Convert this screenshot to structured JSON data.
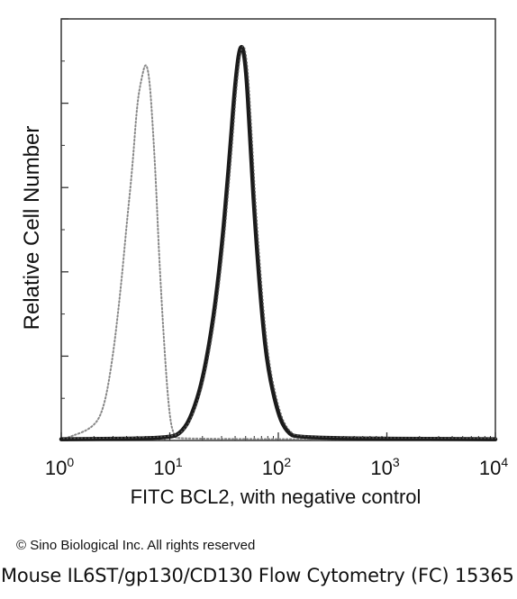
{
  "chart_data": {
    "type": "histogram",
    "xlabel": "FITC BCL2, with negative control",
    "ylabel": "Relative Cell Number",
    "x_scale": "log",
    "xlim": [
      1,
      10000
    ],
    "ylim": [
      0,
      100
    ],
    "x_ticks": [
      {
        "value": 1,
        "base": "10",
        "exp": "0"
      },
      {
        "value": 10,
        "base": "10",
        "exp": "1"
      },
      {
        "value": 100,
        "base": "10",
        "exp": "2"
      },
      {
        "value": 1000,
        "base": "10",
        "exp": "3"
      },
      {
        "value": 10000,
        "base": "10",
        "exp": "4"
      }
    ],
    "series": [
      {
        "style": "dotted",
        "color": "#888888",
        "x": [
          1.1,
          2.0,
          2.5,
          3.0,
          3.5,
          4.0,
          4.5,
          5.0,
          5.5,
          6.0,
          6.5,
          7.0,
          7.5,
          8.0,
          9.0,
          10.0,
          11.0,
          12.0
        ],
        "y": [
          0.5,
          3,
          8,
          20,
          35,
          51,
          64,
          80,
          86,
          90,
          86,
          74,
          60,
          43,
          20,
          5,
          1,
          0.3
        ]
      },
      {
        "style": "solid",
        "color": "#1a1a1a",
        "x": [
          10,
          13,
          16,
          20,
          25,
          30,
          35,
          40,
          45,
          50,
          55,
          60,
          70,
          80,
          100,
          120,
          150
        ],
        "y": [
          0.5,
          2,
          6,
          14,
          28,
          45,
          65,
          85,
          95,
          90,
          72,
          54,
          31,
          17,
          6,
          2,
          0.5
        ]
      }
    ]
  },
  "footer": {
    "copyright": "© Sino Biological Inc. All rights reserved",
    "caption": "Mouse IL6ST/gp130/CD130 Flow Cytometry (FC) 15365"
  }
}
